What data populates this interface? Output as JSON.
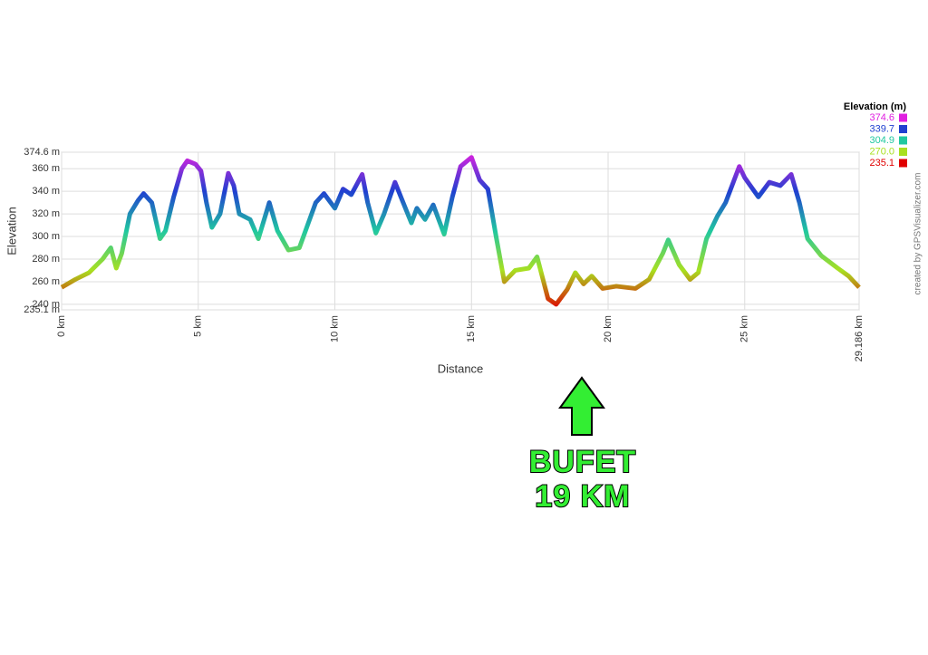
{
  "chart_data": {
    "type": "line",
    "y_label": "Elevation",
    "x_label": "Distance",
    "legend_title": "Elevation (m)",
    "credit": "created by GPSVisualizer.com",
    "annotation": [
      "BUFET",
      "19 KM"
    ],
    "xlim": [
      0,
      29.186
    ],
    "ylim": [
      235.1,
      374.6
    ],
    "xticks": [
      {
        "value": 0,
        "label": "0 km"
      },
      {
        "value": 5,
        "label": "5 km"
      },
      {
        "value": 10,
        "label": "10 km"
      },
      {
        "value": 15,
        "label": "15 km"
      },
      {
        "value": 20,
        "label": "20 km"
      },
      {
        "value": 25,
        "label": "25 km"
      },
      {
        "value": 29.186,
        "label": "29.186 km"
      }
    ],
    "yticks": [
      {
        "value": 235.1,
        "label": "235.1 m"
      },
      {
        "value": 240,
        "label": "240 m"
      },
      {
        "value": 260,
        "label": "260 m"
      },
      {
        "value": 280,
        "label": "280 m"
      },
      {
        "value": 300,
        "label": "300 m"
      },
      {
        "value": 320,
        "label": "320 m"
      },
      {
        "value": 340,
        "label": "340 m"
      },
      {
        "value": 360,
        "label": "360 m"
      },
      {
        "value": 374.6,
        "label": "374.6 m"
      }
    ],
    "grid": true,
    "color_scale": [
      {
        "value": 374.6,
        "color": "#e020e0"
      },
      {
        "value": 339.7,
        "color": "#2040d0"
      },
      {
        "value": 304.9,
        "color": "#20c8a0"
      },
      {
        "value": 270,
        "label": "270.0",
        "color": "#a8e020"
      },
      {
        "value": 235.1,
        "color": "#e00000"
      }
    ],
    "x": [
      0,
      0.5,
      1,
      1.5,
      1.8,
      2.0,
      2.2,
      2.5,
      2.8,
      3.0,
      3.3,
      3.6,
      3.8,
      4.1,
      4.4,
      4.6,
      4.9,
      5.1,
      5.3,
      5.5,
      5.8,
      6.1,
      6.3,
      6.5,
      6.9,
      7.2,
      7.6,
      7.9,
      8.3,
      8.7,
      9.0,
      9.3,
      9.6,
      10.0,
      10.3,
      10.6,
      11.0,
      11.2,
      11.5,
      11.8,
      12.2,
      12.5,
      12.8,
      13.0,
      13.3,
      13.6,
      14.0,
      14.3,
      14.6,
      15.0,
      15.3,
      15.6,
      15.9,
      16.2,
      16.6,
      17.1,
      17.4,
      17.8,
      18.1,
      18.5,
      18.8,
      19.1,
      19.4,
      19.8,
      20.3,
      21.0,
      21.5,
      22.0,
      22.2,
      22.6,
      23.0,
      23.3,
      23.6,
      24.0,
      24.3,
      24.8,
      25.0,
      25.5,
      25.9,
      26.3,
      26.7,
      27.0,
      27.3,
      27.8,
      28.4,
      28.8,
      29.186
    ],
    "values": [
      255,
      262,
      268,
      280,
      290,
      272,
      285,
      320,
      332,
      338,
      330,
      298,
      305,
      335,
      360,
      367,
      364,
      358,
      330,
      308,
      320,
      356,
      345,
      320,
      315,
      298,
      330,
      305,
      288,
      290,
      310,
      330,
      338,
      325,
      342,
      337,
      355,
      330,
      303,
      320,
      348,
      330,
      312,
      325,
      315,
      328,
      302,
      335,
      362,
      370,
      350,
      342,
      300,
      260,
      270,
      272,
      282,
      245,
      240,
      253,
      268,
      258,
      265,
      254,
      256,
      254,
      262,
      285,
      297,
      275,
      262,
      268,
      298,
      318,
      330,
      362,
      352,
      335,
      348,
      345,
      355,
      330,
      298,
      283,
      272,
      265,
      255
    ]
  }
}
